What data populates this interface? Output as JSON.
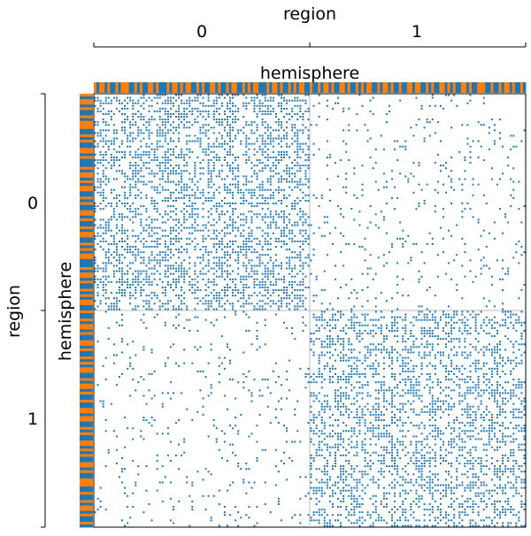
{
  "chart_data": {
    "type": "heatmap",
    "title": "",
    "top_axis": {
      "label": "region",
      "ticks": [
        "0",
        "1"
      ]
    },
    "left_axis": {
      "label": "region",
      "ticks": [
        "0",
        "1"
      ]
    },
    "top_band_label": "hemisphere",
    "left_band_label": "hemisphere",
    "blocks": [
      "0",
      "1"
    ],
    "block_split_fraction": 0.5,
    "nodes": 160,
    "edge_density": [
      [
        0.42,
        0.07
      ],
      [
        0.07,
        0.38
      ]
    ],
    "hemisphere_pattern": [
      1,
      0,
      1,
      1,
      0,
      1,
      0,
      0,
      1,
      0,
      1,
      1,
      1,
      0,
      0,
      1,
      0,
      1,
      0,
      0,
      1,
      1,
      0,
      1,
      0,
      0,
      0,
      1,
      0,
      1,
      1,
      0,
      1,
      0,
      1,
      1,
      0,
      0,
      1,
      0,
      1,
      0,
      0,
      1,
      1,
      0,
      1,
      0,
      0,
      1,
      0,
      1,
      1,
      0,
      0,
      1,
      0,
      1,
      0,
      1,
      1,
      0,
      0,
      0,
      1,
      0,
      1,
      1,
      0,
      1,
      0,
      0,
      1,
      0,
      1,
      0,
      1,
      1,
      0,
      0,
      1,
      0,
      0,
      1,
      0,
      1,
      1,
      0,
      1,
      0,
      0,
      1,
      1,
      0,
      1,
      0,
      0,
      1,
      0,
      1,
      0,
      1,
      1,
      0,
      0,
      1,
      0,
      1,
      1,
      0,
      1,
      0,
      0,
      1,
      0,
      0,
      1,
      1,
      0,
      1,
      1,
      0,
      0,
      1,
      0,
      1,
      0,
      0,
      1,
      1,
      0,
      1,
      0,
      1,
      0,
      0,
      1,
      1,
      0,
      1,
      0,
      0,
      1,
      1,
      1,
      0,
      0,
      1,
      0,
      0,
      1,
      0,
      1,
      1,
      0,
      1,
      0,
      0,
      1,
      0
    ],
    "colors": {
      "point": "#1f77b4",
      "hemisphere_0": "#1f77b4",
      "hemisphere_1": "#ff7f0e",
      "divider": "#bbbbbb"
    },
    "grid": false
  }
}
